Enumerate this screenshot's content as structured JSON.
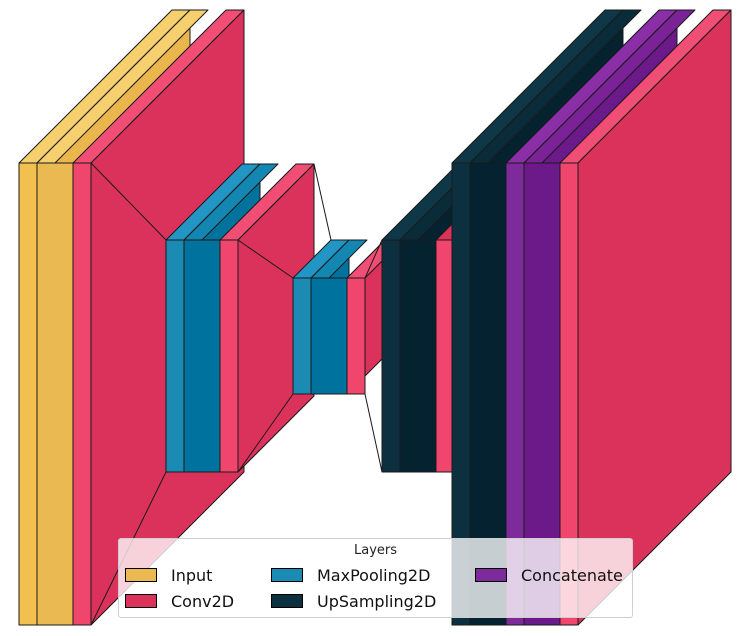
{
  "legend": {
    "title": "Layers",
    "items": [
      {
        "label": "Input",
        "color": "#ebb951"
      },
      {
        "label": "Conv2D",
        "color": "#db325b"
      },
      {
        "label": "MaxPooling2D",
        "color": "#1b8bb4"
      },
      {
        "label": "UpSampling2D",
        "color": "#0c3040"
      },
      {
        "label": "Concatenate",
        "color": "#7d2a9a"
      }
    ]
  },
  "layer_sequence": [
    "Input",
    "Input",
    "Conv2D",
    "Conv2D",
    "MaxPooling2D",
    "MaxPooling2D",
    "Conv2D",
    "Conv2D",
    "MaxPooling2D",
    "MaxPooling2D",
    "Conv2D",
    "Conv2D",
    "UpSampling2D",
    "UpSampling2D",
    "Conv2D",
    "UpSampling2D",
    "UpSampling2D",
    "Concatenate",
    "Concatenate",
    "Conv2D",
    "Conv2D"
  ]
}
